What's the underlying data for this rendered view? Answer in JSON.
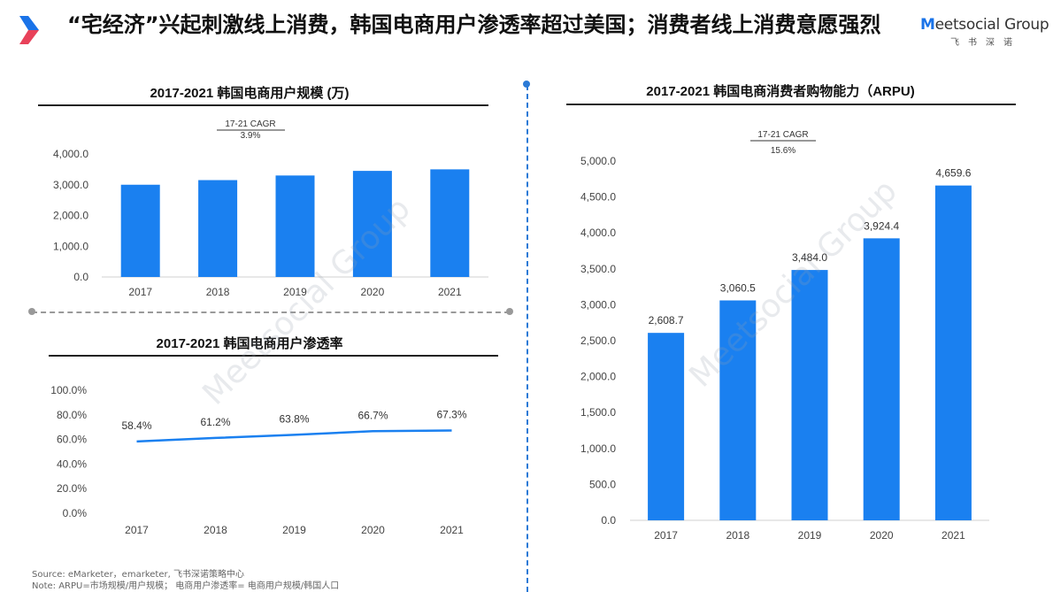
{
  "header": {
    "title": "“宅经济”兴起刺激线上消费，韩国电商用户渗透率超过美国；消费者线上消费意愿强烈",
    "brand_name_m": "M",
    "brand_name_rest": "eetsocial Group",
    "brand_sub": "飞书深诺",
    "brand_color": "#1a73e8",
    "logo_color_primary": "#1a73e8",
    "logo_color_secondary": "#e8425a"
  },
  "watermark": {
    "text": "Meetsocial Group",
    "sub": "飞 书 深 诺"
  },
  "chart_data": [
    {
      "type": "bar",
      "title": "2017-2021 韩国电商用户规模 (万)",
      "categories": [
        "2017",
        "2018",
        "2019",
        "2020",
        "2021"
      ],
      "values": [
        3000,
        3150,
        3300,
        3450,
        3500
      ],
      "ylim": [
        0,
        4000
      ],
      "yticks": [
        "0.0",
        "1,000.0",
        "2,000.0",
        "3,000.0",
        "4,000.0"
      ],
      "ytick_values": [
        0,
        1000,
        2000,
        3000,
        4000
      ],
      "cagr_label": "17-21 CAGR",
      "cagr_value": "3.9%",
      "color": "#1a80f0",
      "grid": false,
      "xlabel": "",
      "ylabel": ""
    },
    {
      "type": "line",
      "title": "2017-2021 韩国电商用户渗透率",
      "categories": [
        "2017",
        "2018",
        "2019",
        "2020",
        "2021"
      ],
      "values": [
        58.4,
        61.2,
        63.8,
        66.7,
        67.3
      ],
      "labels": [
        "58.4%",
        "61.2%",
        "63.8%",
        "66.7%",
        "67.3%"
      ],
      "ylim": [
        0,
        100
      ],
      "yticks": [
        "0.0%",
        "20.0%",
        "40.0%",
        "60.0%",
        "80.0%",
        "100.0%"
      ],
      "ytick_values": [
        0,
        20,
        40,
        60,
        80,
        100
      ],
      "color": "#1a80f0",
      "grid": false,
      "xlabel": "",
      "ylabel": ""
    },
    {
      "type": "bar",
      "title": "2017-2021 韩国电商消费者购物能力（ARPU)",
      "categories": [
        "2017",
        "2018",
        "2019",
        "2020",
        "2021"
      ],
      "values": [
        2608.7,
        3060.5,
        3484.0,
        3924.4,
        4659.6
      ],
      "labels": [
        "2,608.7",
        "3,060.5",
        "3,484.0",
        "3,924.4",
        "4,659.6"
      ],
      "ylim": [
        0,
        5000
      ],
      "yticks": [
        "0.0",
        "500.0",
        "1,000.0",
        "1,500.0",
        "2,000.0",
        "2,500.0",
        "3,000.0",
        "3,500.0",
        "4,000.0",
        "4,500.0",
        "5,000.0"
      ],
      "ytick_values": [
        0,
        500,
        1000,
        1500,
        2000,
        2500,
        3000,
        3500,
        4000,
        4500,
        5000
      ],
      "cagr_label": "17-21 CAGR",
      "cagr_value": "15.6%",
      "color": "#1a80f0",
      "grid": false,
      "xlabel": "",
      "ylabel": ""
    }
  ],
  "footnotes": {
    "source": "Source: eMarketer，emarketer, 飞书深诺策略中心",
    "note": "Note:  ARPU=市场规模/用户规模；  电商用户渗透率= 电商用户规模/韩国人口"
  }
}
